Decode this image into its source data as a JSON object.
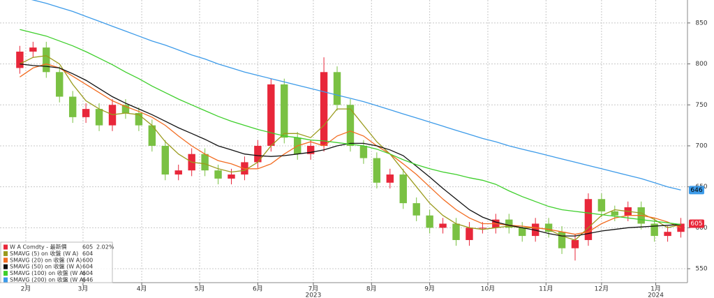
{
  "chart_data": {
    "type": "candlestick",
    "candles": {
      "name": "W A Comdty - 最新價",
      "last_value": 605,
      "change": "2.02%",
      "up_color": "#e8273a",
      "down_color": "#7ac143",
      "open": [
        795,
        815,
        820,
        790,
        760,
        735,
        745,
        725,
        750,
        740,
        725,
        700,
        665,
        670,
        690,
        670,
        660,
        665,
        680,
        700,
        775,
        710,
        690,
        700,
        790,
        750,
        700,
        685,
        655,
        665,
        630,
        615,
        600,
        605,
        585,
        600,
        600,
        610,
        600,
        590,
        605,
        595,
        575,
        585,
        635,
        620,
        615,
        625,
        605,
        590,
        595
      ],
      "high": [
        822,
        827,
        827,
        797,
        767,
        752,
        752,
        757,
        757,
        747,
        732,
        707,
        677,
        697,
        697,
        677,
        672,
        687,
        707,
        782,
        782,
        717,
        707,
        808,
        797,
        757,
        707,
        692,
        672,
        672,
        637,
        622,
        612,
        612,
        607,
        607,
        617,
        617,
        607,
        612,
        612,
        602,
        592,
        642,
        642,
        627,
        632,
        632,
        612,
        602,
        612
      ],
      "low": [
        788,
        808,
        783,
        753,
        728,
        728,
        718,
        718,
        733,
        718,
        693,
        658,
        658,
        663,
        663,
        653,
        653,
        658,
        673,
        693,
        703,
        683,
        683,
        693,
        743,
        693,
        678,
        648,
        648,
        623,
        608,
        593,
        593,
        578,
        578,
        593,
        593,
        593,
        583,
        583,
        588,
        568,
        560,
        578,
        613,
        608,
        608,
        598,
        583,
        583,
        588
      ],
      "close": [
        815,
        820,
        790,
        760,
        735,
        745,
        725,
        750,
        740,
        725,
        700,
        665,
        670,
        690,
        670,
        660,
        665,
        680,
        700,
        775,
        710,
        690,
        700,
        790,
        750,
        700,
        685,
        655,
        665,
        630,
        615,
        600,
        605,
        585,
        600,
        600,
        610,
        600,
        590,
        605,
        595,
        575,
        585,
        635,
        620,
        615,
        625,
        605,
        590,
        595,
        605
      ]
    },
    "series": [
      {
        "name": "SMAVG (5)  on 收盤 (W A)",
        "color": "#9a9a1c",
        "last_value": 604,
        "values": [
          800,
          808,
          810,
          800,
          775,
          755,
          745,
          738,
          740,
          738,
          725,
          705,
          690,
          680,
          678,
          672,
          668,
          670,
          680,
          700,
          715,
          715,
          710,
          725,
          745,
          745,
          725,
          705,
          690,
          670,
          650,
          630,
          615,
          605,
          600,
          598,
          600,
          602,
          600,
          600,
          598,
          590,
          585,
          600,
          615,
          622,
          620,
          618,
          610,
          600,
          604
        ]
      },
      {
        "name": "SMAVG (20)  on 收盤 (W A)",
        "color": "#f26c21",
        "last_value": 600,
        "values": [
          784,
          795,
          800,
          795,
          785,
          775,
          765,
          755,
          748,
          742,
          735,
          725,
          712,
          700,
          690,
          682,
          678,
          672,
          672,
          678,
          690,
          700,
          705,
          700,
          712,
          718,
          712,
          700,
          690,
          678,
          665,
          650,
          635,
          622,
          612,
          605,
          605,
          603,
          602,
          600,
          598,
          595,
          592,
          595,
          605,
          612,
          615,
          615,
          612,
          607,
          600
        ]
      },
      {
        "name": "SMAVG (50)  on 收盤 (W A)",
        "color": "#111111",
        "last_value": 604,
        "values": [
          800,
          798,
          797,
          795,
          788,
          780,
          770,
          760,
          752,
          745,
          738,
          730,
          722,
          715,
          708,
          700,
          695,
          690,
          688,
          687,
          688,
          690,
          692,
          695,
          700,
          703,
          703,
          700,
          695,
          688,
          675,
          662,
          648,
          635,
          622,
          613,
          607,
          603,
          600,
          597,
          593,
          590,
          590,
          593,
          596,
          598,
          600,
          601,
          602,
          603,
          604
        ]
      },
      {
        "name": "SMAVG (100)  on 收盤 (W A)",
        "color": "#3ecf2b",
        "last_value": 604,
        "values": [
          842,
          838,
          834,
          828,
          822,
          815,
          807,
          799,
          790,
          782,
          773,
          765,
          757,
          750,
          743,
          736,
          730,
          725,
          720,
          716,
          712,
          710,
          707,
          706,
          704,
          702,
          700,
          696,
          690,
          683,
          677,
          672,
          668,
          665,
          661,
          658,
          653,
          645,
          638,
          632,
          626,
          622,
          620,
          618,
          616,
          614,
          612,
          610,
          608,
          606,
          604
        ]
      },
      {
        "name": "SMAVG (200)  on 收盤 (W A)",
        "color": "#3d9be9",
        "last_value": 646,
        "values": [
          882,
          878,
          874,
          869,
          864,
          858,
          852,
          846,
          840,
          834,
          828,
          823,
          817,
          811,
          806,
          800,
          795,
          790,
          786,
          782,
          778,
          774,
          770,
          766,
          762,
          758,
          754,
          749,
          744,
          739,
          734,
          729,
          724,
          719,
          714,
          709,
          705,
          700,
          696,
          692,
          688,
          684,
          680,
          676,
          672,
          668,
          664,
          660,
          655,
          650,
          646
        ]
      }
    ],
    "xlim": [
      -1.5,
      50.5
    ],
    "xticks": [
      {
        "value": 0.45,
        "label": "2月"
      },
      {
        "value": 4.78,
        "label": "3月"
      },
      {
        "value": 9.22,
        "label": "4月"
      },
      {
        "value": 13.6,
        "label": "5月"
      },
      {
        "value": 18.0,
        "label": "6月"
      },
      {
        "value": 22.2,
        "label": "7月"
      },
      {
        "value": 26.6,
        "label": "8月"
      },
      {
        "value": 31.0,
        "label": "9月"
      },
      {
        "value": 35.4,
        "label": "10月"
      },
      {
        "value": 39.8,
        "label": "11月"
      },
      {
        "value": 44.0,
        "label": "12月"
      },
      {
        "value": 48.1,
        "label": "1月"
      }
    ],
    "year_ticks": [
      {
        "value": 22.2,
        "label": "2023"
      },
      {
        "value": 48.1,
        "label": "2024"
      }
    ],
    "ylim": [
      533,
      878
    ],
    "yticks": [
      550,
      600,
      650,
      700,
      750,
      800,
      850
    ],
    "grid": true
  }
}
